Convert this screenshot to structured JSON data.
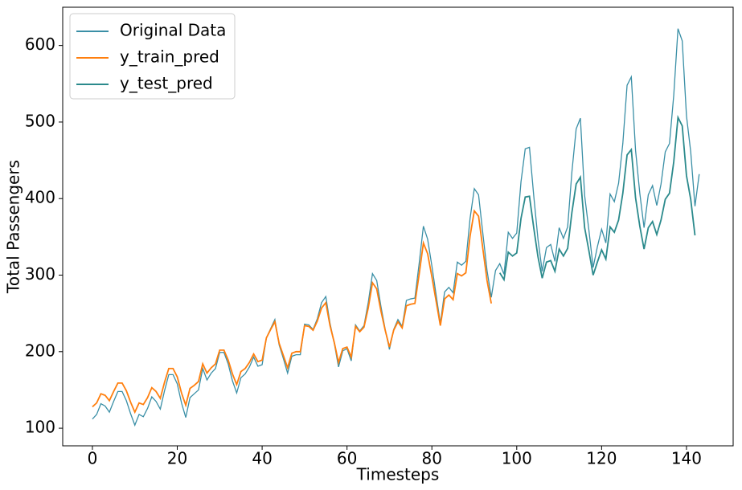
{
  "chart_data": {
    "type": "line",
    "xlabel": "Timesteps",
    "ylabel": "Total Passengers",
    "xlim": [
      -7,
      151
    ],
    "ylim": [
      77,
      650
    ],
    "xticks": [
      0,
      20,
      40,
      60,
      80,
      100,
      120,
      140
    ],
    "yticks": [
      100,
      200,
      300,
      400,
      500,
      600
    ],
    "legend": "upper left",
    "x": [
      0,
      1,
      2,
      3,
      4,
      5,
      6,
      7,
      8,
      9,
      10,
      11,
      12,
      13,
      14,
      15,
      16,
      17,
      18,
      19,
      20,
      21,
      22,
      23,
      24,
      25,
      26,
      27,
      28,
      29,
      30,
      31,
      32,
      33,
      34,
      35,
      36,
      37,
      38,
      39,
      40,
      41,
      42,
      43,
      44,
      45,
      46,
      47,
      48,
      49,
      50,
      51,
      52,
      53,
      54,
      55,
      56,
      57,
      58,
      59,
      60,
      61,
      62,
      63,
      64,
      65,
      66,
      67,
      68,
      69,
      70,
      71,
      72,
      73,
      74,
      75,
      76,
      77,
      78,
      79,
      80,
      81,
      82,
      83,
      84,
      85,
      86,
      87,
      88,
      89,
      90,
      91,
      92,
      93,
      94,
      95,
      96,
      97,
      98,
      99,
      100,
      101,
      102,
      103,
      104,
      105,
      106,
      107,
      108,
      109,
      110,
      111,
      112,
      113,
      114,
      115,
      116,
      117,
      118,
      119,
      120,
      121,
      122,
      123,
      124,
      125,
      126,
      127,
      128,
      129,
      130,
      131,
      132,
      133,
      134,
      135,
      136,
      137,
      138,
      139,
      140,
      141,
      142,
      143
    ],
    "series": [
      {
        "name": "Original Data",
        "color": "#3a8fa6",
        "values": [
          112,
          118,
          132,
          129,
          121,
          135,
          148,
          148,
          136,
          119,
          104,
          118,
          115,
          126,
          141,
          135,
          125,
          149,
          170,
          170,
          158,
          133,
          114,
          140,
          145,
          150,
          178,
          163,
          172,
          178,
          199,
          199,
          184,
          162,
          146,
          166,
          171,
          180,
          193,
          181,
          183,
          218,
          230,
          242,
          209,
          191,
          172,
          194,
          196,
          196,
          236,
          235,
          229,
          243,
          264,
          272,
          237,
          211,
          180,
          201,
          204,
          188,
          235,
          227,
          234,
          264,
          302,
          293,
          259,
          229,
          203,
          229,
          242,
          233,
          267,
          269,
          270,
          315,
          364,
          347,
          312,
          274,
          237,
          278,
          284,
          277,
          317,
          313,
          318,
          374,
          413,
          405,
          355,
          306,
          271,
          306,
          315,
          301,
          356,
          348,
          355,
          422,
          465,
          467,
          404,
          347,
          305,
          336,
          340,
          318,
          362,
          348,
          363,
          435,
          491,
          505,
          404,
          359,
          310,
          337,
          360,
          342,
          406,
          396,
          420,
          472,
          548,
          559,
          463,
          407,
          362,
          405,
          417,
          391,
          419,
          461,
          472,
          535,
          622,
          606,
          508,
          461,
          390,
          432
        ]
      },
      {
        "name": "y_train_pred",
        "color": "#ff7f0e",
        "values": [
          128,
          133,
          145,
          143,
          136,
          148,
          159,
          159,
          149,
          134,
          121,
          133,
          131,
          140,
          153,
          148,
          139,
          160,
          178,
          178,
          167,
          146,
          130,
          152,
          156,
          161,
          184,
          172,
          179,
          184,
          202,
          202,
          189,
          171,
          157,
          174,
          178,
          186,
          197,
          187,
          189,
          218,
          229,
          239,
          211,
          195,
          179,
          198,
          200,
          200,
          234,
          233,
          228,
          240,
          257,
          264,
          234,
          212,
          186,
          204,
          206,
          193,
          233,
          226,
          232,
          257,
          290,
          282,
          253,
          228,
          206,
          228,
          239,
          231,
          260,
          262,
          263,
          301,
          342,
          328,
          298,
          266,
          234,
          269,
          274,
          268,
          302,
          299,
          303,
          351,
          384,
          377,
          335,
          293,
          263,
          null,
          null,
          null,
          null,
          null,
          null,
          null,
          null,
          null,
          null,
          null,
          null,
          null,
          null,
          null,
          null,
          null,
          null,
          null,
          null,
          null,
          null,
          null,
          null,
          null,
          null,
          null,
          null,
          null,
          null,
          null,
          null,
          null,
          null,
          null,
          null,
          null,
          null,
          null,
          null,
          null,
          null,
          null,
          null,
          null,
          null,
          null,
          null,
          null
        ]
      },
      {
        "name": "y_test_pred",
        "color": "#2b8a8c",
        "values": [
          null,
          null,
          null,
          null,
          null,
          null,
          null,
          null,
          null,
          null,
          null,
          null,
          null,
          null,
          null,
          null,
          null,
          null,
          null,
          null,
          null,
          null,
          null,
          null,
          null,
          null,
          null,
          null,
          null,
          null,
          null,
          null,
          null,
          null,
          null,
          null,
          null,
          null,
          null,
          null,
          null,
          null,
          null,
          null,
          null,
          null,
          null,
          null,
          null,
          null,
          null,
          null,
          null,
          null,
          null,
          null,
          null,
          null,
          null,
          null,
          null,
          null,
          null,
          null,
          null,
          null,
          null,
          null,
          null,
          null,
          null,
          null,
          null,
          null,
          null,
          null,
          null,
          null,
          null,
          null,
          null,
          null,
          null,
          null,
          null,
          null,
          null,
          null,
          null,
          null,
          null,
          null,
          null,
          null,
          null,
          null,
          303,
          294,
          330,
          325,
          329,
          374,
          402,
          403,
          362,
          324,
          296,
          317,
          319,
          305,
          334,
          325,
          335,
          382,
          419,
          428,
          362,
          332,
          300,
          317,
          333,
          321,
          363,
          356,
          372,
          407,
          457,
          464,
          401,
          364,
          334,
          362,
          370,
          353,
          372,
          399,
          407,
          448,
          506,
          495,
          430,
          399,
          352,
          null
        ]
      }
    ]
  }
}
